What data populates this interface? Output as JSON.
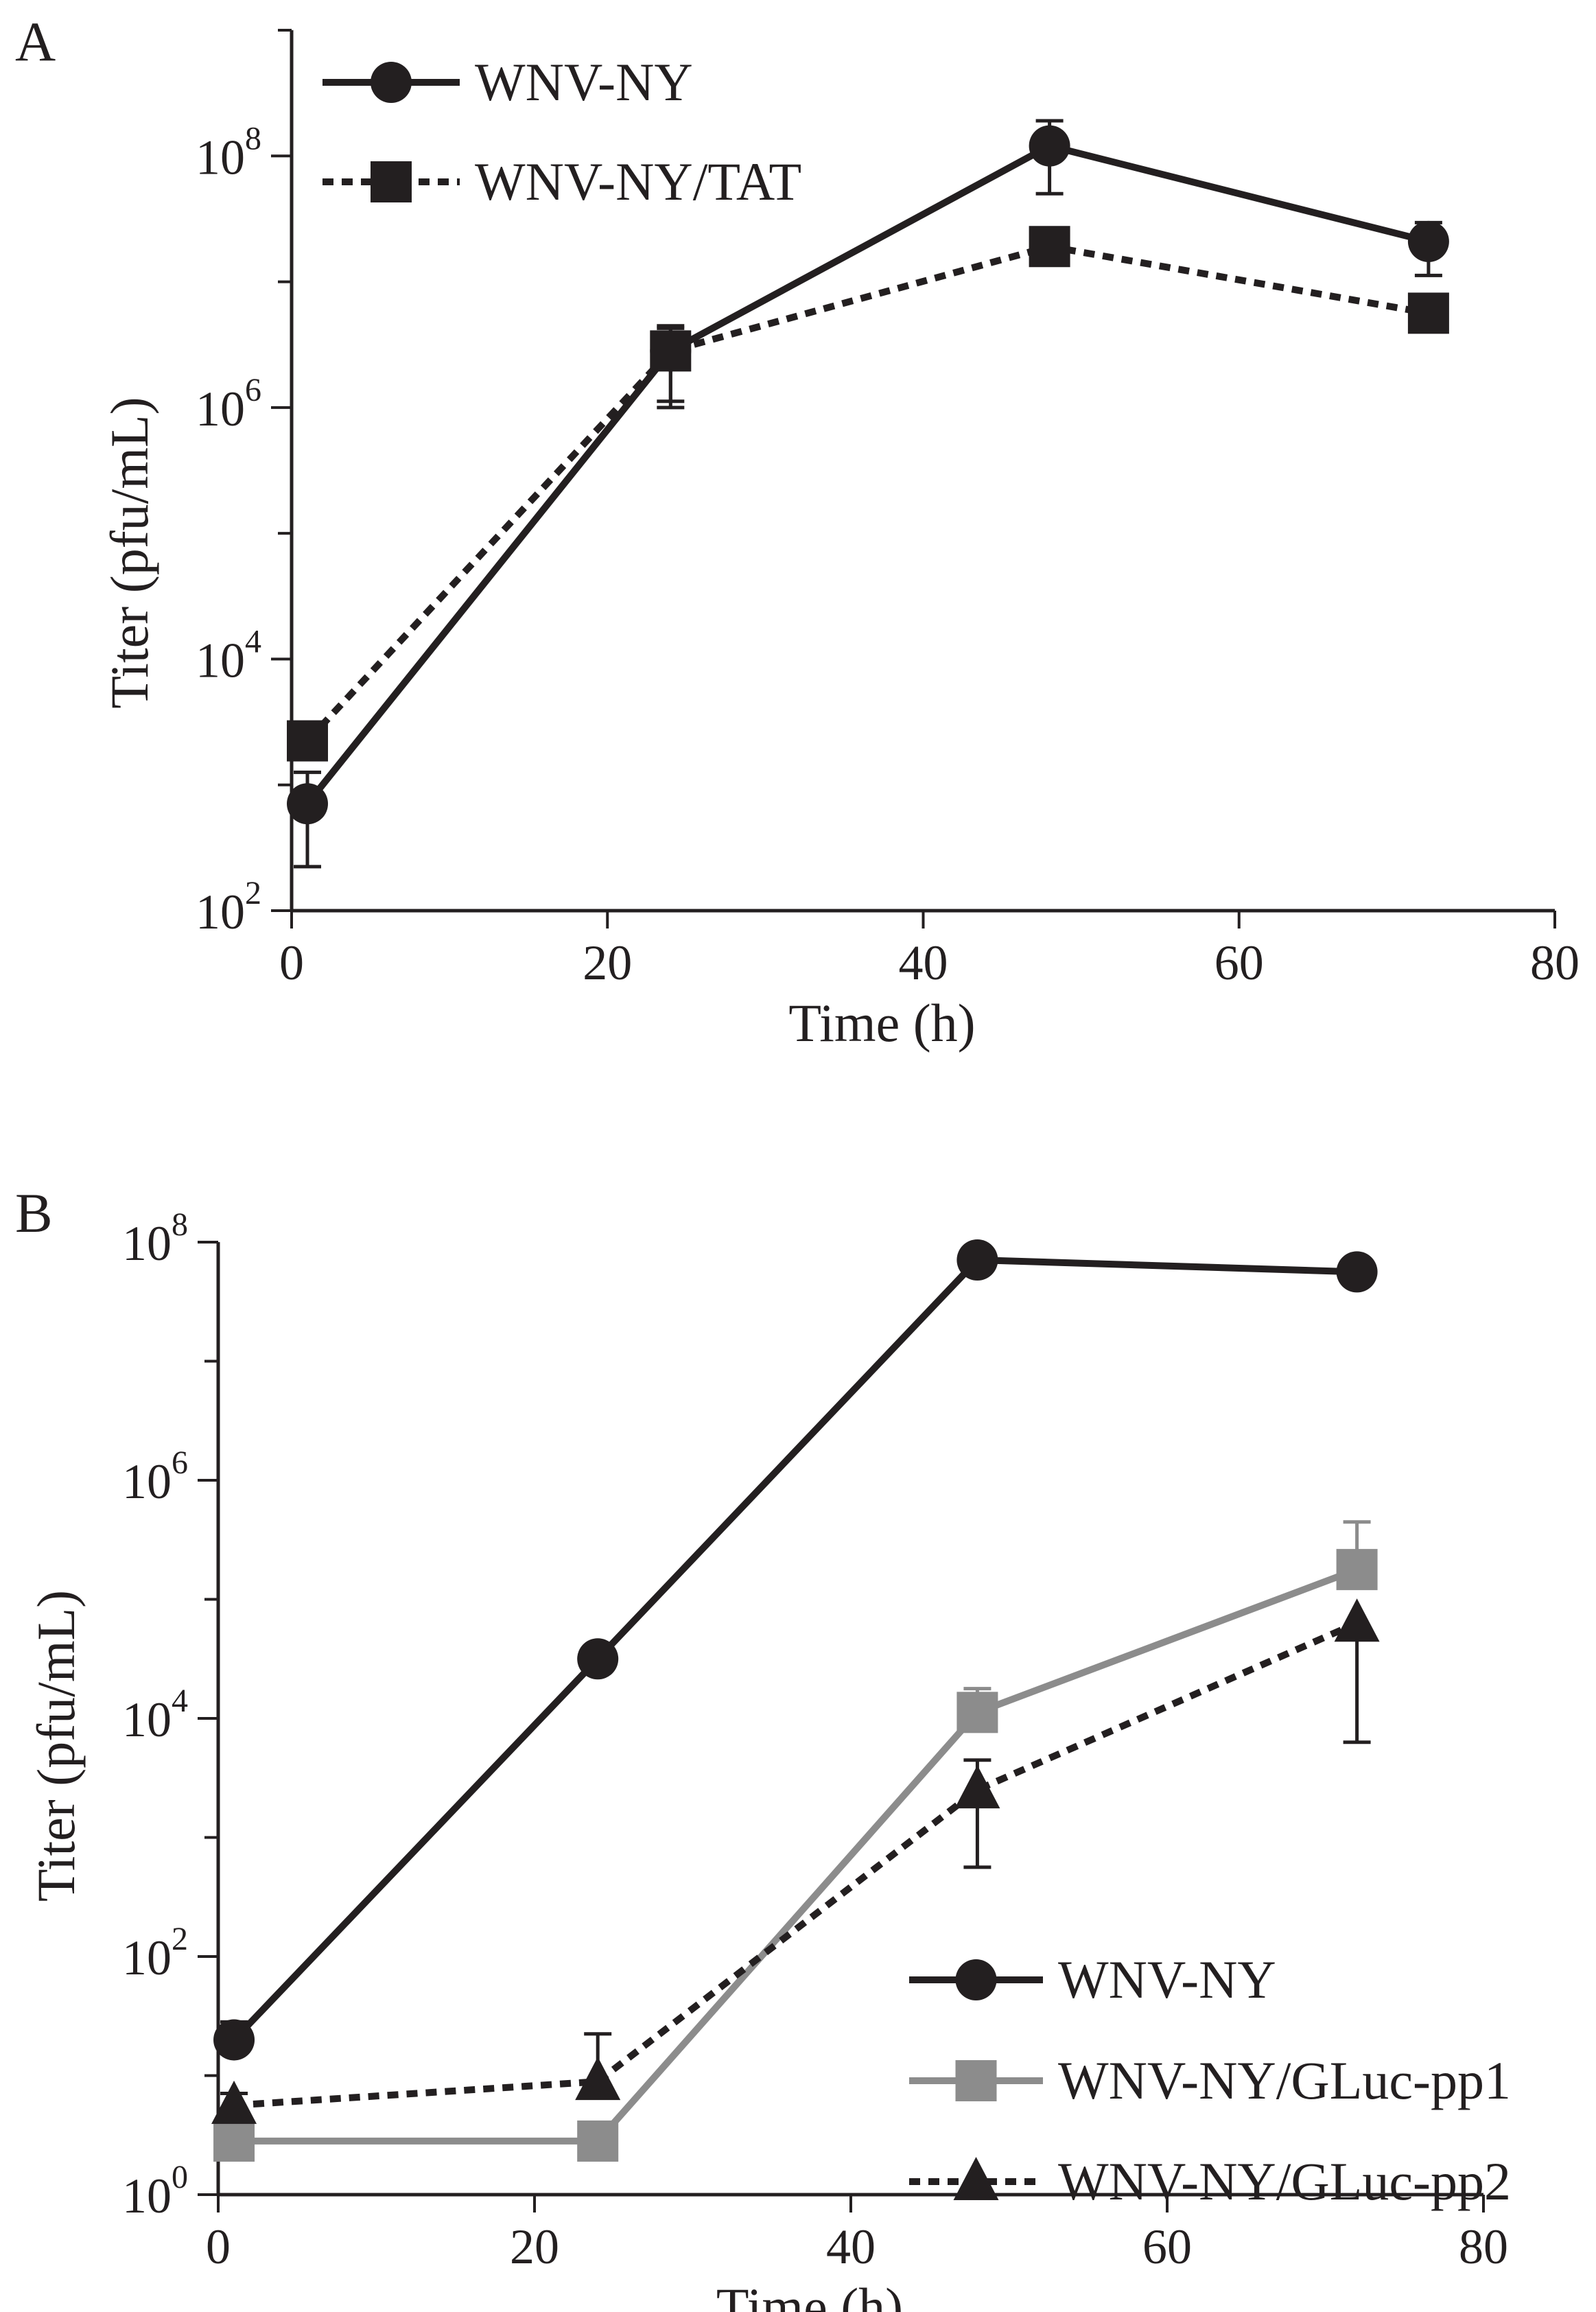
{
  "figure": {
    "panels": [
      "A",
      "B"
    ]
  },
  "chart_data": [
    {
      "panel": "A",
      "type": "line",
      "xlabel": "Time (h)",
      "ylabel": "Titer (pfu/mL)",
      "yscale": "log10",
      "xlim": [
        0,
        80
      ],
      "ylim_exp": [
        2,
        9
      ],
      "xticks": [
        "0",
        "20",
        "40",
        "60",
        "80"
      ],
      "yticks": [
        {
          "base": "10",
          "exp": "2",
          "value_exp": 2
        },
        {
          "base": "10",
          "exp": "4",
          "value_exp": 4
        },
        {
          "base": "10",
          "exp": "6",
          "value_exp": 6
        },
        {
          "base": "10",
          "exp": "8",
          "value_exp": 8
        }
      ],
      "legend_position": "top-left",
      "series": [
        {
          "name": "WNV-NY",
          "color": "#231f20",
          "marker": "circle",
          "dash": "solid",
          "x": [
            1,
            24,
            48,
            72
          ],
          "log_y": [
            2.85,
            6.45,
            8.08,
            7.32
          ],
          "err_lo": [
            2.35,
            6.05,
            7.7,
            7.05
          ],
          "err_hi": [
            3.1,
            6.63,
            8.28,
            7.47
          ]
        },
        {
          "name": "WNV-NY/TAT",
          "color": "#231f20",
          "marker": "square",
          "dash": "dotted",
          "x": [
            1,
            24,
            48,
            72
          ],
          "log_y": [
            3.35,
            6.45,
            7.28,
            6.75
          ],
          "err_lo": [
            3.35,
            6.0,
            7.28,
            6.75
          ],
          "err_hi": [
            3.35,
            6.65,
            7.28,
            6.75
          ]
        }
      ]
    },
    {
      "panel": "B",
      "type": "line",
      "xlabel": "Time (h)",
      "ylabel": "Titer (pfu/mL)",
      "yscale": "log10",
      "xlim": [
        0,
        80
      ],
      "ylim_exp": [
        0,
        8
      ],
      "xticks": [
        "0",
        "20",
        "40",
        "60",
        "80"
      ],
      "yticks": [
        {
          "base": "10",
          "exp": "0",
          "value_exp": 0
        },
        {
          "base": "10",
          "exp": "2",
          "value_exp": 2
        },
        {
          "base": "10",
          "exp": "4",
          "value_exp": 4
        },
        {
          "base": "10",
          "exp": "6",
          "value_exp": 6
        },
        {
          "base": "10",
          "exp": "8",
          "value_exp": 8
        }
      ],
      "legend_position": "bottom-right",
      "series": [
        {
          "name": "WNV-NY",
          "color": "#231f20",
          "marker": "circle",
          "dash": "solid",
          "x": [
            1,
            24,
            48,
            72
          ],
          "log_y": [
            1.3,
            4.5,
            7.85,
            7.75
          ],
          "err_lo": [
            1.3,
            4.5,
            7.85,
            7.75
          ],
          "err_hi": [
            1.45,
            4.5,
            7.85,
            7.75
          ]
        },
        {
          "name": "WNV-NY/GLuc-pp1",
          "color": "#8c8c8c",
          "marker": "square",
          "dash": "solid",
          "x": [
            1,
            24,
            48,
            72
          ],
          "log_y": [
            0.45,
            0.45,
            4.05,
            5.25
          ],
          "err_lo": [
            0.45,
            0.45,
            4.05,
            5.25
          ],
          "err_hi": [
            0.45,
            0.45,
            4.25,
            5.65
          ]
        },
        {
          "name": "WNV-NY/GLuc-pp2",
          "color": "#231f20",
          "marker": "triangle",
          "dash": "dotted",
          "x": [
            1,
            24,
            48,
            72
          ],
          "log_y": [
            0.75,
            0.95,
            3.4,
            4.8
          ],
          "err_lo": [
            0.75,
            0.95,
            2.75,
            3.8
          ],
          "err_hi": [
            0.85,
            1.35,
            3.65,
            4.8
          ]
        }
      ]
    }
  ]
}
